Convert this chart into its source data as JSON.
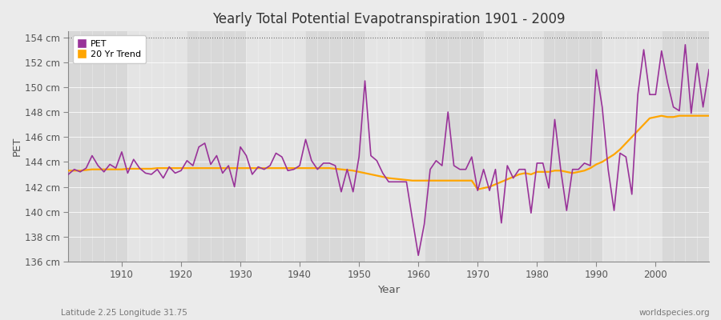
{
  "title": "Yearly Total Potential Evapotranspiration 1901 - 2009",
  "xlabel": "Year",
  "ylabel": "PET",
  "subtitle_left": "Latitude 2.25 Longitude 31.75",
  "subtitle_right": "worldspecies.org",
  "pet_color": "#993399",
  "trend_color": "#FFA500",
  "bg_color": "#EBEBEB",
  "plot_bg_color": "#E0E0E0",
  "band_color_1": "#D8D8D8",
  "band_color_2": "#E4E4E4",
  "ylim": [
    136,
    154.5
  ],
  "yticks": [
    136,
    138,
    140,
    142,
    144,
    146,
    148,
    150,
    152,
    154
  ],
  "xticks": [
    1910,
    1920,
    1930,
    1940,
    1950,
    1960,
    1970,
    1980,
    1990,
    2000
  ],
  "years": [
    1901,
    1902,
    1903,
    1904,
    1905,
    1906,
    1907,
    1908,
    1909,
    1910,
    1911,
    1912,
    1913,
    1914,
    1915,
    1916,
    1917,
    1918,
    1919,
    1920,
    1921,
    1922,
    1923,
    1924,
    1925,
    1926,
    1927,
    1928,
    1929,
    1930,
    1931,
    1932,
    1933,
    1934,
    1935,
    1936,
    1937,
    1938,
    1939,
    1940,
    1941,
    1942,
    1943,
    1944,
    1945,
    1946,
    1947,
    1948,
    1949,
    1950,
    1951,
    1952,
    1953,
    1954,
    1955,
    1956,
    1957,
    1958,
    1959,
    1960,
    1961,
    1962,
    1963,
    1964,
    1965,
    1966,
    1967,
    1968,
    1969,
    1970,
    1971,
    1972,
    1973,
    1974,
    1975,
    1976,
    1977,
    1978,
    1979,
    1980,
    1981,
    1982,
    1983,
    1984,
    1985,
    1986,
    1987,
    1988,
    1989,
    1990,
    1991,
    1992,
    1993,
    1994,
    1995,
    1996,
    1997,
    1998,
    1999,
    2000,
    2001,
    2002,
    2003,
    2004,
    2005,
    2006,
    2007,
    2008,
    2009
  ],
  "pet_values": [
    143.0,
    143.4,
    143.2,
    143.5,
    144.5,
    143.7,
    143.2,
    143.8,
    143.5,
    144.8,
    143.1,
    144.2,
    143.5,
    143.1,
    143.0,
    143.4,
    142.7,
    143.6,
    143.1,
    143.3,
    144.1,
    143.7,
    145.2,
    145.5,
    143.8,
    144.5,
    143.1,
    143.7,
    142.0,
    145.2,
    144.5,
    143.0,
    143.6,
    143.4,
    143.7,
    144.7,
    144.4,
    143.3,
    143.4,
    143.7,
    145.8,
    144.1,
    143.4,
    143.9,
    143.9,
    143.7,
    141.6,
    143.4,
    141.6,
    144.4,
    150.5,
    144.5,
    144.1,
    143.1,
    142.4,
    142.4,
    142.4,
    142.4,
    139.4,
    136.5,
    139.0,
    143.4,
    144.1,
    143.7,
    148.0,
    143.7,
    143.4,
    143.4,
    144.4,
    141.7,
    143.4,
    141.7,
    143.4,
    139.1,
    143.7,
    142.7,
    143.4,
    143.4,
    139.9,
    143.9,
    143.9,
    141.9,
    147.4,
    143.4,
    140.1,
    143.4,
    143.4,
    143.9,
    143.7,
    151.4,
    148.4,
    143.4,
    140.1,
    144.7,
    144.4,
    141.4,
    149.4,
    153.0,
    149.4,
    149.4,
    152.9,
    150.4,
    148.4,
    148.1,
    153.4,
    147.9,
    151.9,
    148.4,
    151.4
  ],
  "trend_values": [
    143.3,
    143.3,
    143.3,
    143.35,
    143.4,
    143.4,
    143.4,
    143.4,
    143.4,
    143.4,
    143.45,
    143.45,
    143.45,
    143.45,
    143.45,
    143.5,
    143.5,
    143.5,
    143.5,
    143.5,
    143.5,
    143.5,
    143.5,
    143.5,
    143.5,
    143.5,
    143.5,
    143.5,
    143.5,
    143.5,
    143.5,
    143.5,
    143.5,
    143.5,
    143.5,
    143.5,
    143.5,
    143.5,
    143.5,
    143.5,
    143.5,
    143.5,
    143.5,
    143.5,
    143.5,
    143.45,
    143.4,
    143.35,
    143.3,
    143.2,
    143.1,
    143.0,
    142.9,
    142.8,
    142.7,
    142.65,
    142.6,
    142.55,
    142.5,
    142.5,
    142.5,
    142.5,
    142.5,
    142.5,
    142.5,
    142.5,
    142.5,
    142.5,
    142.5,
    141.8,
    141.9,
    142.0,
    142.2,
    142.4,
    142.6,
    142.8,
    143.0,
    143.1,
    143.0,
    143.2,
    143.2,
    143.2,
    143.3,
    143.3,
    143.2,
    143.1,
    143.2,
    143.3,
    143.5,
    143.8,
    144.0,
    144.3,
    144.6,
    145.0,
    145.5,
    146.0,
    146.5,
    147.0,
    147.5,
    147.6,
    147.7,
    147.6,
    147.6,
    147.7,
    147.7,
    147.7,
    147.7,
    147.7,
    147.7
  ]
}
